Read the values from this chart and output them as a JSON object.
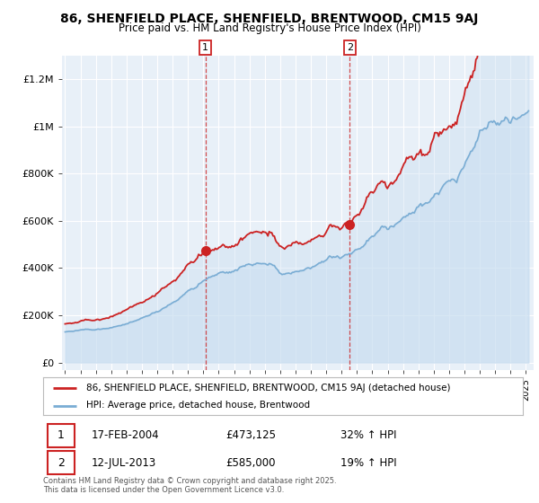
{
  "title": "86, SHENFIELD PLACE, SHENFIELD, BRENTWOOD, CM15 9AJ",
  "subtitle": "Price paid vs. HM Land Registry's House Price Index (HPI)",
  "ylabel_ticks": [
    "£0",
    "£200K",
    "£400K",
    "£600K",
    "£800K",
    "£1M",
    "£1.2M"
  ],
  "ytick_values": [
    0,
    200000,
    400000,
    600000,
    800000,
    1000000,
    1200000
  ],
  "ylim": [
    -30000,
    1300000
  ],
  "bg_color": "#ffffff",
  "plot_bg_color": "#e8f0f8",
  "red_color": "#cc2222",
  "blue_color": "#7aadd4",
  "fill_color": "#c8ddf0",
  "marker1_year": 2004.13,
  "marker1_value": 473125,
  "marker2_year": 2013.54,
  "marker2_value": 585000,
  "legend_label1": "86, SHENFIELD PLACE, SHENFIELD, BRENTWOOD, CM15 9AJ (detached house)",
  "legend_label2": "HPI: Average price, detached house, Brentwood",
  "footer": "Contains HM Land Registry data © Crown copyright and database right 2025.\nThis data is licensed under the Open Government Licence v3.0.",
  "box1_label": "1",
  "box1_date": "17-FEB-2004",
  "box1_price": "£473,125",
  "box1_hpi": "32% ↑ HPI",
  "box2_label": "2",
  "box2_date": "12-JUL-2013",
  "box2_price": "£585,000",
  "box2_hpi": "19% ↑ HPI"
}
